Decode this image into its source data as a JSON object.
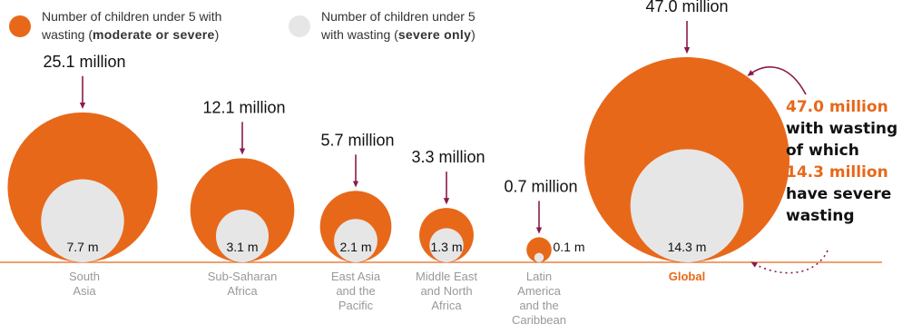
{
  "legend": [
    {
      "line1": "Number of children under 5 with",
      "line2_pre": "wasting (",
      "line2_bold": "moderate or severe",
      "line2_post": ")",
      "color": "#E8681A"
    },
    {
      "line1": "Number of children under 5",
      "line2_pre": "with wasting (",
      "line2_bold": "severe only",
      "line2_post": ")",
      "color": "#E6E6E6"
    }
  ],
  "chart_data": {
    "type": "proportional-area (nested circles)",
    "unit": "million",
    "categories": [
      {
        "label": [
          "South",
          "Asia"
        ],
        "total": 25.1,
        "total_label": "25.1 million",
        "severe": 7.7,
        "severe_label": "7.7 m"
      },
      {
        "label": [
          "Sub-Saharan",
          "Africa"
        ],
        "total": 12.1,
        "total_label": "12.1 million",
        "severe": 3.1,
        "severe_label": "3.1 m"
      },
      {
        "label": [
          "East Asia",
          "and the",
          "Pacific"
        ],
        "total": 5.7,
        "total_label": "5.7 million",
        "severe": 2.1,
        "severe_label": "2.1 m"
      },
      {
        "label": [
          "Middle East",
          "and North",
          "Africa"
        ],
        "total": 3.3,
        "total_label": "3.3 million",
        "severe": 1.3,
        "severe_label": "1.3 m"
      },
      {
        "label": [
          "Latin",
          "America",
          "and the",
          "Caribbean"
        ],
        "total": 0.7,
        "total_label": "0.7 million",
        "severe": 0.1,
        "severe_label": "0.1 m"
      },
      {
        "label": [
          "Global"
        ],
        "total": 47.0,
        "total_label": "47.0 million",
        "severe": 14.3,
        "severe_label": "14.3 m",
        "emphasis": true
      }
    ],
    "colors": {
      "moderate_or_severe": "#E8681A",
      "severe_only": "#E6E6E6",
      "arrow": "#8B1A4A",
      "baseline": "#E8681A",
      "category_label": "#999999"
    }
  },
  "callout": {
    "line1": "47.0 million",
    "line2": "with wasting",
    "line3": "of which",
    "line4": "14.3 million",
    "line5": "have severe",
    "line6": "wasting"
  }
}
